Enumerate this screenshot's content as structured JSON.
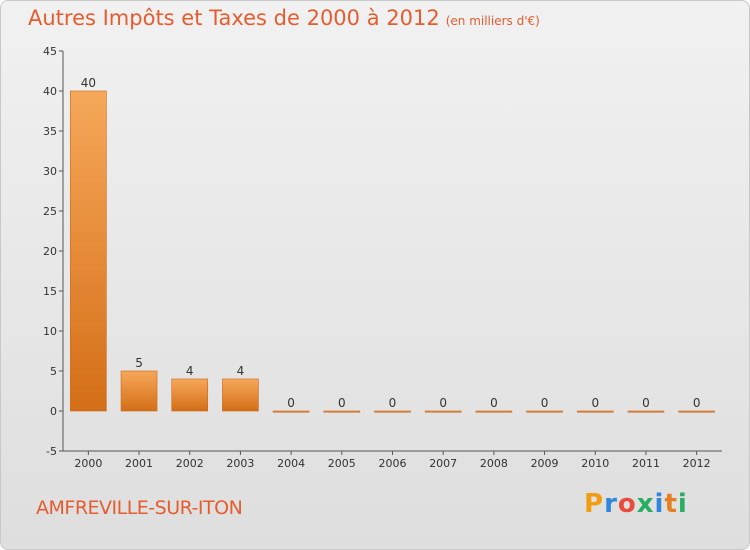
{
  "chart_data": {
    "type": "bar",
    "title": "Autres Impôts et Taxes de 2000 à 2012",
    "subtitle": "(en milliers d'€)",
    "categories": [
      "2000",
      "2001",
      "2002",
      "2003",
      "2004",
      "2005",
      "2006",
      "2007",
      "2008",
      "2009",
      "2010",
      "2011",
      "2012"
    ],
    "values": [
      40,
      5,
      4,
      4,
      0,
      0,
      0,
      0,
      0,
      0,
      0,
      0,
      0
    ],
    "ylim": [
      -5,
      45
    ],
    "yticks": [
      -5,
      0,
      5,
      10,
      15,
      20,
      25,
      30,
      35,
      40,
      45
    ],
    "grid": false,
    "bar_color": "#e8842e",
    "title_color": "#e55d2f"
  },
  "footer": {
    "place": "AMFREVILLE-SUR-ITON"
  },
  "logo": {
    "letters": [
      "P",
      "r",
      "o",
      "x",
      "i",
      "t",
      "i"
    ],
    "colors": [
      "#f39c12",
      "#2e86de",
      "#e74c3c",
      "#27ae60",
      "#2e86de",
      "#e67e22",
      "#27ae60"
    ]
  }
}
